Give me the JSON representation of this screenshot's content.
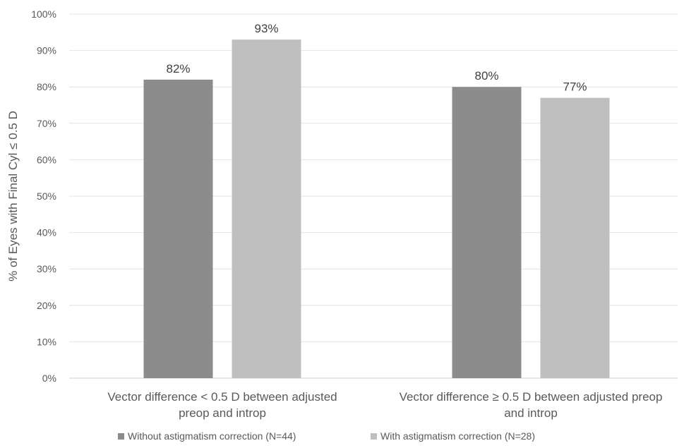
{
  "chart_data": {
    "type": "bar",
    "title": "",
    "xlabel": "",
    "ylabel": "% of Eyes with Final Cyl ≤ 0.5 D",
    "ylim": [
      0,
      100
    ],
    "yticks": [
      0,
      10,
      20,
      30,
      40,
      50,
      60,
      70,
      80,
      90,
      100
    ],
    "ytick_labels": [
      "0%",
      "10%",
      "20%",
      "30%",
      "40%",
      "50%",
      "60%",
      "70%",
      "80%",
      "90%",
      "100%"
    ],
    "categories": [
      [
        "Vector difference < 0.5 D between adjusted",
        "preop and introp"
      ],
      [
        "Vector difference ≥ 0.5 D between adjusted preop",
        "and introp"
      ]
    ],
    "series": [
      {
        "name": "Without astigmatism correction (N=44)",
        "color": "#8c8c8c",
        "values": [
          82,
          80
        ],
        "labels": [
          "82%",
          "80%"
        ]
      },
      {
        "name": "With astigmatism correction (N=28)",
        "color": "#bfbfbf",
        "values": [
          93,
          77
        ],
        "labels": [
          "93%",
          "77%"
        ]
      }
    ],
    "grid": true,
    "legend_position": "bottom"
  }
}
